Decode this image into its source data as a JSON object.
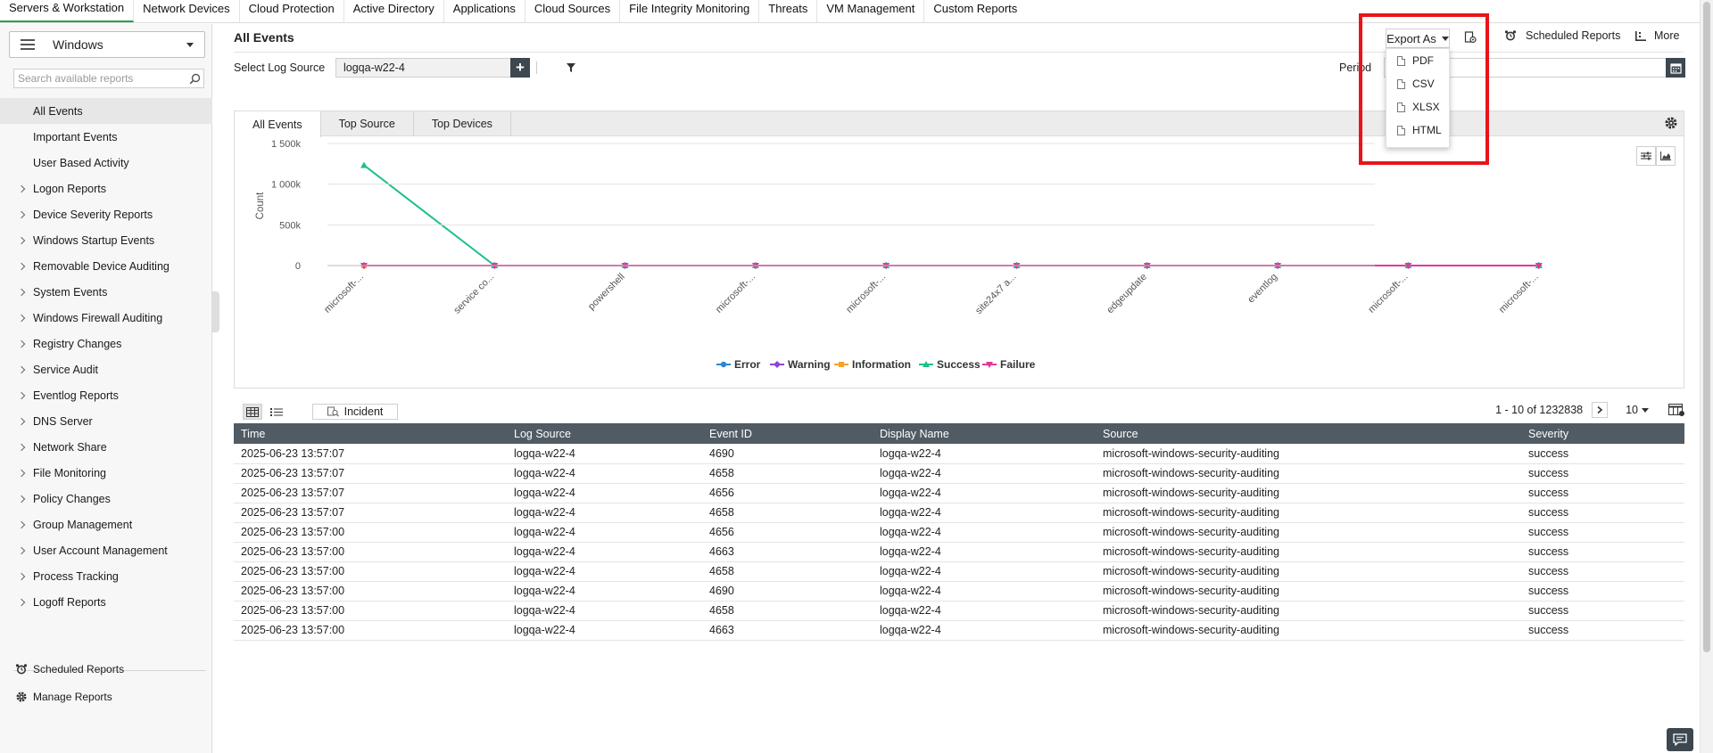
{
  "top_nav": [
    "Servers & Workstation",
    "Network Devices",
    "Cloud Protection",
    "Active Directory",
    "Applications",
    "Cloud Sources",
    "File Integrity Monitoring",
    "Threats",
    "VM Management",
    "Custom Reports"
  ],
  "sidebar": {
    "os": "Windows",
    "search_placeholder": "Search available reports",
    "items": [
      {
        "label": "All Events",
        "type": "sub",
        "active": true
      },
      {
        "label": "Important Events",
        "type": "sub"
      },
      {
        "label": "User Based Activity",
        "type": "sub"
      },
      {
        "label": "Logon Reports",
        "type": "grp"
      },
      {
        "label": "Device Severity Reports",
        "type": "grp"
      },
      {
        "label": "Windows Startup Events",
        "type": "grp"
      },
      {
        "label": "Removable Device Auditing",
        "type": "grp"
      },
      {
        "label": "System Events",
        "type": "grp"
      },
      {
        "label": "Windows Firewall Auditing",
        "type": "grp"
      },
      {
        "label": "Registry Changes",
        "type": "grp"
      },
      {
        "label": "Service Audit",
        "type": "grp"
      },
      {
        "label": "Eventlog Reports",
        "type": "grp"
      },
      {
        "label": "DNS Server",
        "type": "grp"
      },
      {
        "label": "Network Share",
        "type": "grp"
      },
      {
        "label": "File Monitoring",
        "type": "grp"
      },
      {
        "label": "Policy Changes",
        "type": "grp"
      },
      {
        "label": "Group Management",
        "type": "grp"
      },
      {
        "label": "User Account Management",
        "type": "grp"
      },
      {
        "label": "Process Tracking",
        "type": "grp"
      },
      {
        "label": "Logoff Reports",
        "type": "grp"
      }
    ],
    "footer": {
      "scheduled_reports": "Scheduled Reports",
      "manage_reports": "Manage Reports"
    }
  },
  "header": {
    "title": "All Events",
    "export_label": "Export As",
    "export_options": [
      "PDF",
      "CSV",
      "XLSX",
      "HTML"
    ],
    "scheduled_reports": "Scheduled Reports",
    "more": "More"
  },
  "filters": {
    "log_source_label": "Select Log Source",
    "log_source_value": "logqa-w22-4",
    "period_label": "Period"
  },
  "chart_tabs": [
    "All Events",
    "Top Source",
    "Top Devices"
  ],
  "chart_data": {
    "type": "line",
    "categories": [
      "microsoft-...",
      "service co...",
      "powershell",
      "microsoft-...",
      "microsoft-...",
      "site24x7 a...",
      "edgeupdate",
      "eventlog",
      "microsoft-...",
      "microsoft-..."
    ],
    "ylabel": "Count",
    "xlabel": "",
    "ylim": [
      0,
      1500000
    ],
    "yticks": [
      0,
      500000,
      1000000,
      1500000
    ],
    "ytick_labels": [
      "0",
      "500k",
      "1 000k",
      "1 500k"
    ],
    "grid": true,
    "legend_position": "bottom",
    "series": [
      {
        "name": "Error",
        "color": "#2f86d1",
        "marker": "circle",
        "values": [
          0,
          0,
          0,
          0,
          0,
          0,
          0,
          0,
          0,
          0
        ]
      },
      {
        "name": "Warning",
        "color": "#8e44d9",
        "marker": "diamond",
        "values": [
          0,
          0,
          0,
          0,
          0,
          0,
          0,
          0,
          0,
          0
        ]
      },
      {
        "name": "Information",
        "color": "#f5a12a",
        "marker": "square",
        "values": [
          0,
          0,
          0,
          0,
          0,
          0,
          0,
          0,
          0,
          0
        ]
      },
      {
        "name": "Success",
        "color": "#1cbf8f",
        "marker": "triangle",
        "values": [
          1232000,
          0,
          0,
          0,
          0,
          0,
          0,
          0,
          0,
          0
        ]
      },
      {
        "name": "Failure",
        "color": "#e0389c",
        "marker": "triangle-down",
        "values": [
          0,
          0,
          0,
          0,
          0,
          0,
          0,
          0,
          0,
          0
        ]
      }
    ]
  },
  "table": {
    "incident_label": "Incident",
    "pager_text": "1 - 10 of 1232838",
    "per_page": "10",
    "columns": [
      "Time",
      "Log Source",
      "Event ID",
      "Display Name",
      "Source",
      "Severity"
    ],
    "rows": [
      [
        "2025-06-23 13:57:07",
        "logqa-w22-4",
        "4690",
        "logqa-w22-4",
        "microsoft-windows-security-auditing",
        "success"
      ],
      [
        "2025-06-23 13:57:07",
        "logqa-w22-4",
        "4658",
        "logqa-w22-4",
        "microsoft-windows-security-auditing",
        "success"
      ],
      [
        "2025-06-23 13:57:07",
        "logqa-w22-4",
        "4656",
        "logqa-w22-4",
        "microsoft-windows-security-auditing",
        "success"
      ],
      [
        "2025-06-23 13:57:07",
        "logqa-w22-4",
        "4658",
        "logqa-w22-4",
        "microsoft-windows-security-auditing",
        "success"
      ],
      [
        "2025-06-23 13:57:00",
        "logqa-w22-4",
        "4656",
        "logqa-w22-4",
        "microsoft-windows-security-auditing",
        "success"
      ],
      [
        "2025-06-23 13:57:00",
        "logqa-w22-4",
        "4663",
        "logqa-w22-4",
        "microsoft-windows-security-auditing",
        "success"
      ],
      [
        "2025-06-23 13:57:00",
        "logqa-w22-4",
        "4658",
        "logqa-w22-4",
        "microsoft-windows-security-auditing",
        "success"
      ],
      [
        "2025-06-23 13:57:00",
        "logqa-w22-4",
        "4690",
        "logqa-w22-4",
        "microsoft-windows-security-auditing",
        "success"
      ],
      [
        "2025-06-23 13:57:00",
        "logqa-w22-4",
        "4658",
        "logqa-w22-4",
        "microsoft-windows-security-auditing",
        "success"
      ],
      [
        "2025-06-23 13:57:00",
        "logqa-w22-4",
        "4663",
        "logqa-w22-4",
        "microsoft-windows-security-auditing",
        "success"
      ]
    ]
  },
  "colors": {
    "active_tab_accent": "#2aa04a",
    "highlight_box": "#e8141c",
    "table_header": "#505b64"
  }
}
